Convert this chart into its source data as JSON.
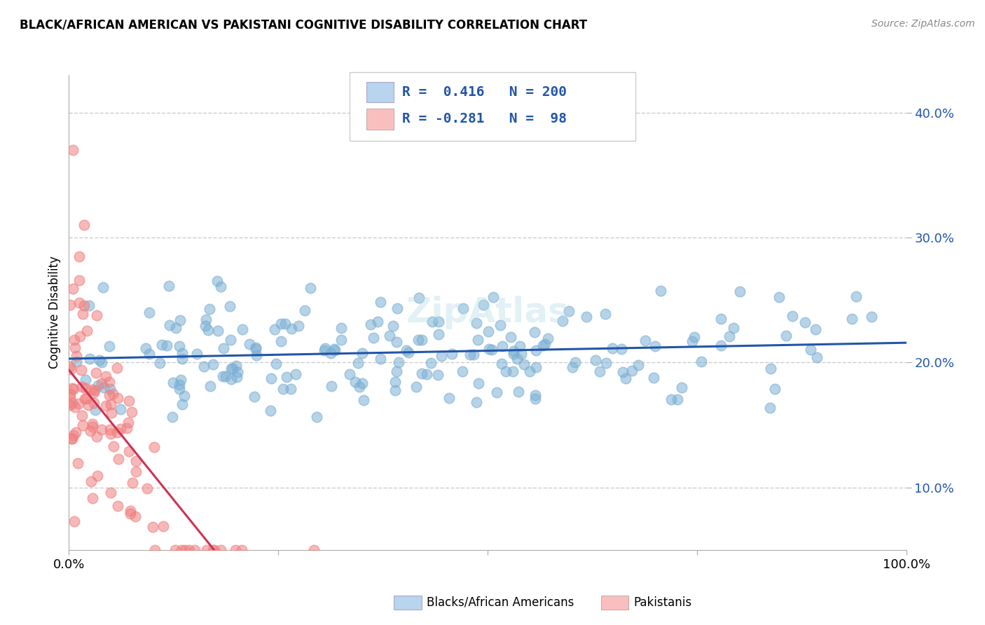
{
  "title": "BLACK/AFRICAN AMERICAN VS PAKISTANI COGNITIVE DISABILITY CORRELATION CHART",
  "source": "Source: ZipAtlas.com",
  "ylabel": "Cognitive Disability",
  "blue_R": 0.416,
  "blue_N": 200,
  "pink_R": -0.281,
  "pink_N": 98,
  "blue_color": "#7BAFD4",
  "pink_color": "#F08080",
  "blue_trend_color": "#2255AA",
  "pink_trend_color": "#CC3355",
  "blue_fill_color": "#B8D4EE",
  "pink_fill_color": "#F9BFBF",
  "background_color": "#FFFFFF",
  "grid_color": "#CCCCCC",
  "watermark_text": "ZipAtlas",
  "legend_labels": [
    "Blacks/African Americans",
    "Pakistanis"
  ],
  "xlim": [
    0,
    1.0
  ],
  "ylim": [
    0.05,
    0.43
  ],
  "y_ticks": [
    0.1,
    0.2,
    0.3,
    0.4
  ],
  "y_tick_labels": [
    "10.0%",
    "20.0%",
    "30.0%",
    "40.0%"
  ],
  "seed": 42
}
